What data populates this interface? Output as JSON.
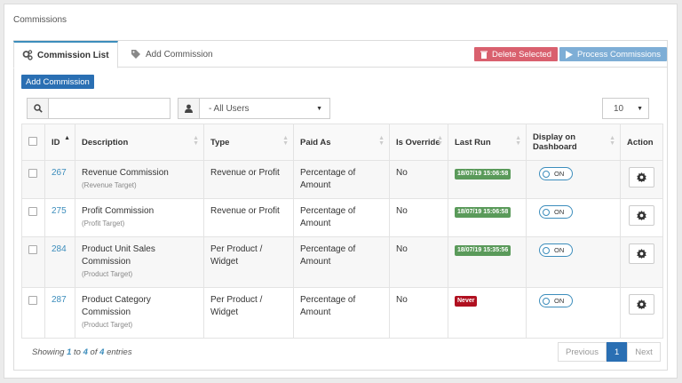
{
  "page": {
    "title": "Commissions"
  },
  "tabs": [
    {
      "label": "Commission List",
      "icon": "gears-icon"
    },
    {
      "label": "Add Commission",
      "icon": "tag-icon"
    }
  ],
  "actions": {
    "delete_label": "Delete Selected",
    "process_label": "Process Commissions",
    "add_label": "Add Commission"
  },
  "filters": {
    "search_value": "",
    "user_selected": "- All Users",
    "page_length": "10"
  },
  "columns": [
    "ID",
    "Description",
    "Type",
    "Paid As",
    "Is Override",
    "Last Run",
    "Display on Dashboard",
    "Action"
  ],
  "rows": [
    {
      "id": "267",
      "desc": "Revenue Commission",
      "sub": "(Revenue Target)",
      "type": "Revenue or Profit",
      "paid": "Percentage of Amount",
      "override": "No",
      "last_run": "18/07/19 15:06:58",
      "last_run_status": "green",
      "toggle": "ON"
    },
    {
      "id": "275",
      "desc": "Profit Commission",
      "sub": "(Profit Target)",
      "type": "Revenue or Profit",
      "paid": "Percentage of Amount",
      "override": "No",
      "last_run": "18/07/19 15:06:58",
      "last_run_status": "green",
      "toggle": "ON"
    },
    {
      "id": "284",
      "desc": "Product Unit Sales Commission",
      "sub": "(Product Target)",
      "type": "Per Product / Widget",
      "paid": "Percentage of Amount",
      "override": "No",
      "last_run": "18/07/19 15:35:56",
      "last_run_status": "green",
      "toggle": "ON"
    },
    {
      "id": "287",
      "desc": "Product Category Commission",
      "sub": "(Product Target)",
      "type": "Per Product / Widget",
      "paid": "Percentage of Amount",
      "override": "No",
      "last_run": "Never",
      "last_run_status": "red",
      "toggle": "ON"
    }
  ],
  "footer": {
    "showing": "Showing",
    "from": "1",
    "to_word": "to",
    "to": "4",
    "of_word": "of",
    "total": "4",
    "entries": "entries"
  },
  "pagination": {
    "prev": "Previous",
    "current": "1",
    "next": "Next"
  },
  "colors": {
    "primary": "#2a6fb3",
    "danger": "#d9606e",
    "info": "#7eaed6",
    "success": "#5a9a5a",
    "never": "#b01020"
  }
}
